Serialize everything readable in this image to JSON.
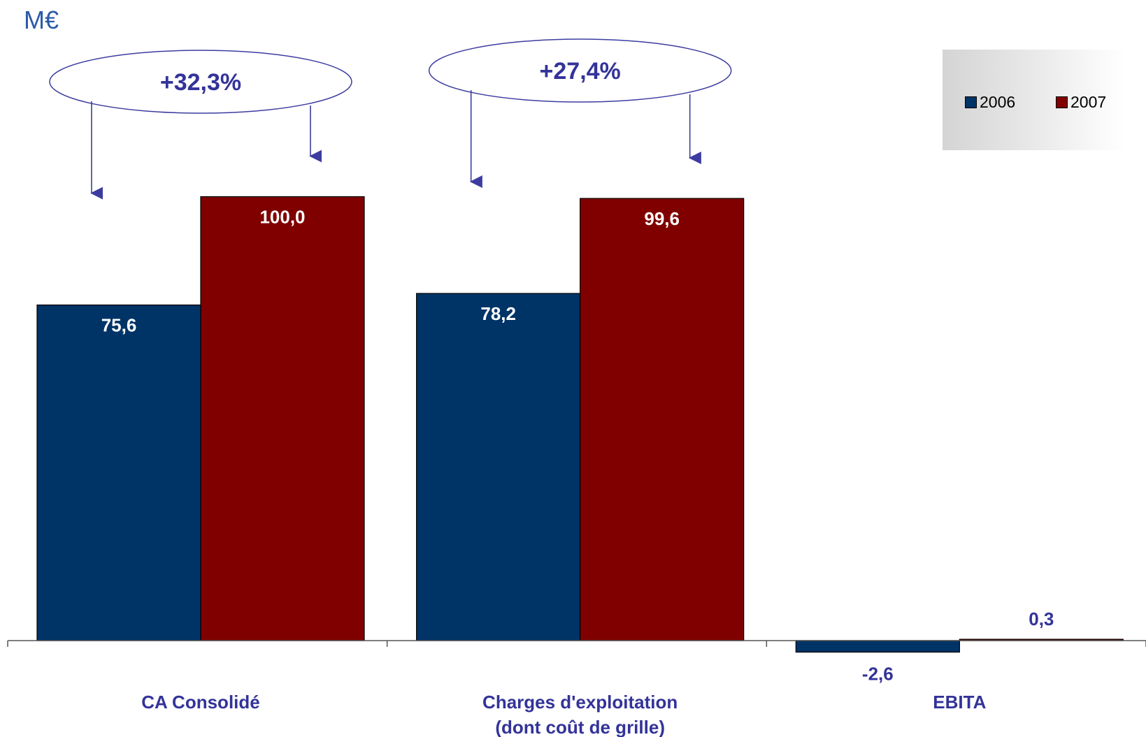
{
  "unit_label": "M€",
  "chart_data": {
    "type": "bar",
    "categories": [
      "CA Consolidé",
      "Charges d'exploitation\n(dont coût de grille)",
      "EBITA"
    ],
    "series": [
      {
        "name": "2006",
        "values": [
          75.6,
          78.2,
          -2.6
        ],
        "labels": [
          "75,6",
          "78,2",
          "-2,6"
        ]
      },
      {
        "name": "2007",
        "values": [
          100.0,
          99.6,
          0.3
        ],
        "labels": [
          "100,0",
          "99,6",
          "0,3"
        ]
      }
    ],
    "annotations": [
      "+32,3%",
      "+27,4%"
    ],
    "legend_position": "top-right",
    "grid": false,
    "title": "",
    "xlabel": "",
    "ylabel": "",
    "colors": {
      "2006": "#003366",
      "2007": "#800000",
      "annotation": "#3c3ca0",
      "unit": "#2b5ba8"
    }
  }
}
